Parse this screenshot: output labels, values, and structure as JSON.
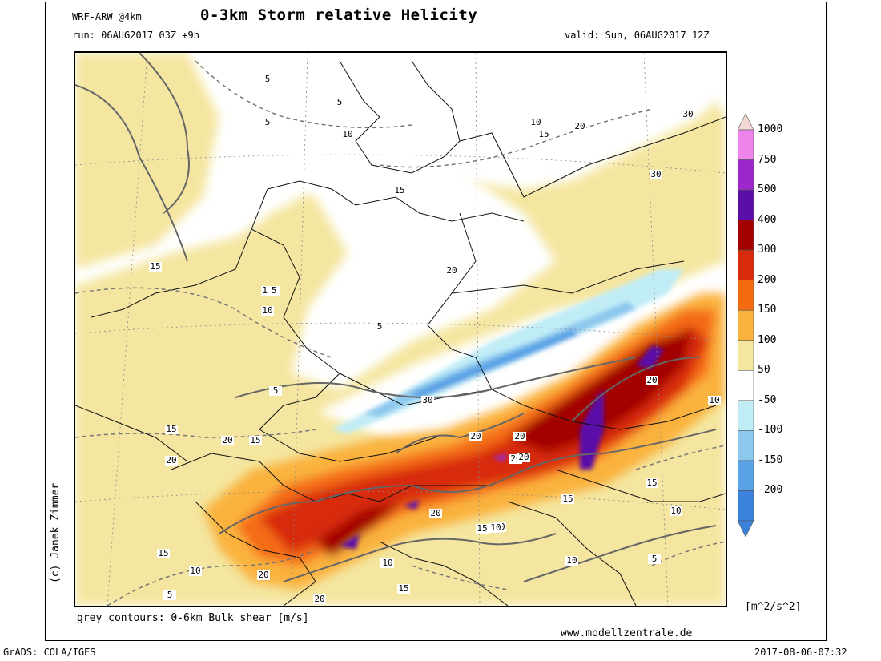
{
  "header": {
    "model": "WRF-ARW @4km",
    "title": "0-3km Storm relative Helicity",
    "run": "run: 06AUG2017 03Z +9h",
    "valid": "valid: Sun, 06AUG2017 12Z"
  },
  "credit": "(c) Janek Zimmer",
  "footer": {
    "contour_note": "grey contours: 0-6km Bulk shear [m/s]",
    "website": "www.modellzentrale.de",
    "grads": "GrADS: COLA/IGES",
    "timestamp": "2017-08-06-07:32"
  },
  "colorbar": {
    "unit": "[m^2/s^2]",
    "levels": [
      {
        "label": "1000",
        "color": "#f4d8d4"
      },
      {
        "label": "750",
        "color": "#ec84ec"
      },
      {
        "label": "500",
        "color": "#9c28cc"
      },
      {
        "label": "400",
        "color": "#5a0fa8"
      },
      {
        "label": "300",
        "color": "#a30000"
      },
      {
        "label": "200",
        "color": "#d82a0c"
      },
      {
        "label": "150",
        "color": "#f46c12"
      },
      {
        "label": "100",
        "color": "#fab23e"
      },
      {
        "label": "50",
        "color": "#f4e6a0"
      },
      {
        "label": "-50",
        "color": "#ffffff"
      },
      {
        "label": "-100",
        "color": "#c0ecf6"
      },
      {
        "label": "-150",
        "color": "#8cc8ee"
      },
      {
        "label": "-200",
        "color": "#5aa2e6"
      },
      {
        "label": "",
        "color": "#3a82dc"
      }
    ]
  },
  "contour_labels": [
    "5",
    "5",
    "5",
    "10",
    "10",
    "15",
    "20",
    "30",
    "30",
    "20",
    "15",
    "15",
    "15",
    "10",
    "5",
    "5",
    "5",
    "15",
    "20",
    "15",
    "20",
    "30",
    "20",
    "20",
    "20",
    "20",
    "20",
    "20",
    "15",
    "10",
    "10",
    "15",
    "10",
    "10",
    "5",
    "15",
    "20",
    "20",
    "10",
    "20",
    "15",
    "10",
    "5",
    "10",
    "15"
  ]
}
